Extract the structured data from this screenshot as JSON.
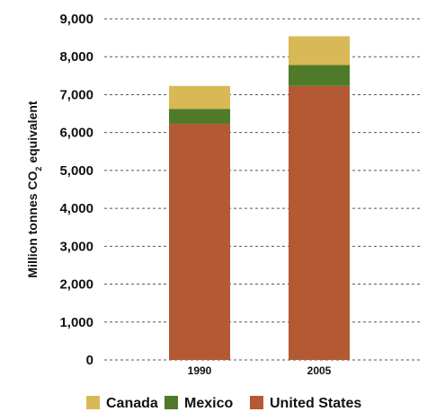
{
  "chart_data": {
    "type": "bar",
    "stacked": true,
    "categories": [
      "1990",
      "2005"
    ],
    "series": [
      {
        "name": "United States",
        "values": [
          6230,
          7230
        ],
        "color": "#b35a35"
      },
      {
        "name": "Mexico",
        "values": [
          390,
          550
        ],
        "color": "#4f7a2a"
      },
      {
        "name": "Canada",
        "values": [
          610,
          760
        ],
        "color": "#d9b956"
      }
    ],
    "ylabel_main": "Million tonnes CO",
    "ylabel_sub": "2",
    "ylabel_tail": " equivalent",
    "ylim": [
      0,
      9000
    ],
    "yticks": [
      {
        "value": 0,
        "label": "0"
      },
      {
        "value": 1000,
        "label": "1,000"
      },
      {
        "value": 2000,
        "label": "2,000"
      },
      {
        "value": 3000,
        "label": "3,000"
      },
      {
        "value": 4000,
        "label": "4,000"
      },
      {
        "value": 5000,
        "label": "5,000"
      },
      {
        "value": 6000,
        "label": "6,000"
      },
      {
        "value": 7000,
        "label": "7,000"
      },
      {
        "value": 8000,
        "label": "8,000"
      },
      {
        "value": 9000,
        "label": "9,000"
      }
    ],
    "legend_order": [
      "Canada",
      "Mexico",
      "United States"
    ],
    "legend_position": "bottom",
    "grid": true,
    "grid_style": "dashed",
    "grid_color": "#555555"
  }
}
